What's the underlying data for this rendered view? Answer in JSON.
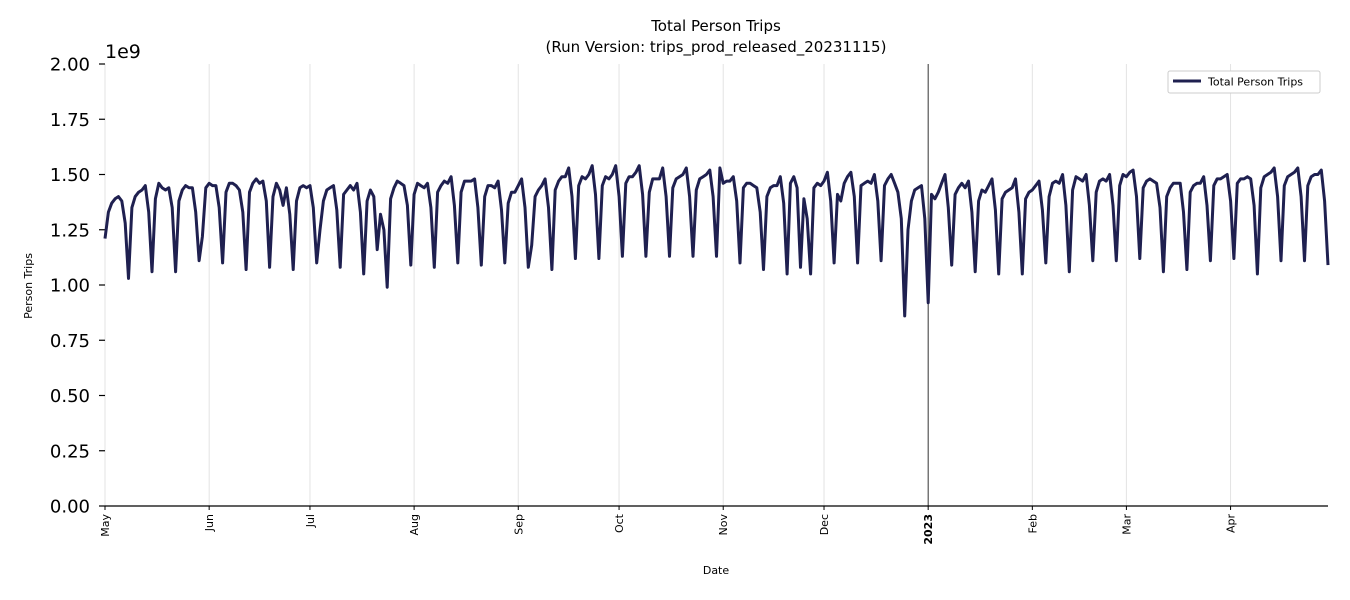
{
  "chart_data": {
    "type": "line",
    "title": "Total Person Trips",
    "subtitle": "(Run Version: trips_prod_released_20231115)",
    "xlabel": "Date",
    "ylabel": "Person Trips",
    "y_multiplier_label": "1e9",
    "ylim": [
      0,
      2.0
    ],
    "y_ticks": [
      "0.00",
      "0.25",
      "0.50",
      "0.75",
      "1.00",
      "1.25",
      "1.50",
      "1.75",
      "2.00"
    ],
    "xlim": [
      "2022-05-01",
      "2023-04-30"
    ],
    "x_ticks": [
      {
        "date": "2022-05-01",
        "label": "May",
        "bold": false
      },
      {
        "date": "2022-06-01",
        "label": "Jun",
        "bold": false
      },
      {
        "date": "2022-07-01",
        "label": "Jul",
        "bold": false
      },
      {
        "date": "2022-08-01",
        "label": "Aug",
        "bold": false
      },
      {
        "date": "2022-09-01",
        "label": "Sep",
        "bold": false
      },
      {
        "date": "2022-10-01",
        "label": "Oct",
        "bold": false
      },
      {
        "date": "2022-11-01",
        "label": "Nov",
        "bold": false
      },
      {
        "date": "2022-12-01",
        "label": "Dec",
        "bold": false
      },
      {
        "date": "2023-01-01",
        "label": "2023",
        "bold": true
      },
      {
        "date": "2023-02-01",
        "label": "Feb",
        "bold": false
      },
      {
        "date": "2023-03-01",
        "label": "Mar",
        "bold": false
      },
      {
        "date": "2023-04-01",
        "label": "Apr",
        "bold": false
      }
    ],
    "grid": "vertical",
    "vline_date": "2023-01-01",
    "legend_position": "top-right",
    "series": [
      {
        "name": "Total Person Trips",
        "color": "#1f2050",
        "x_start": "2022-05-01",
        "x_step": "1 day",
        "values": [
          1.21,
          1.33,
          1.37,
          1.39,
          1.4,
          1.38,
          1.28,
          1.03,
          1.35,
          1.4,
          1.42,
          1.43,
          1.45,
          1.33,
          1.06,
          1.39,
          1.46,
          1.44,
          1.43,
          1.44,
          1.35,
          1.06,
          1.38,
          1.43,
          1.45,
          1.44,
          1.44,
          1.33,
          1.11,
          1.22,
          1.44,
          1.46,
          1.45,
          1.45,
          1.35,
          1.1,
          1.42,
          1.46,
          1.46,
          1.45,
          1.43,
          1.33,
          1.07,
          1.42,
          1.46,
          1.48,
          1.46,
          1.47,
          1.38,
          1.08,
          1.4,
          1.46,
          1.43,
          1.36,
          1.44,
          1.32,
          1.07,
          1.38,
          1.44,
          1.45,
          1.44,
          1.45,
          1.35,
          1.1,
          1.25,
          1.38,
          1.43,
          1.44,
          1.45,
          1.34,
          1.08,
          1.41,
          1.43,
          1.45,
          1.43,
          1.46,
          1.33,
          1.05,
          1.38,
          1.43,
          1.4,
          1.16,
          1.32,
          1.25,
          0.99,
          1.39,
          1.44,
          1.47,
          1.46,
          1.45,
          1.36,
          1.09,
          1.41,
          1.46,
          1.45,
          1.44,
          1.46,
          1.35,
          1.08,
          1.42,
          1.45,
          1.47,
          1.46,
          1.49,
          1.36,
          1.1,
          1.42,
          1.47,
          1.47,
          1.47,
          1.48,
          1.35,
          1.09,
          1.4,
          1.45,
          1.45,
          1.44,
          1.47,
          1.34,
          1.1,
          1.37,
          1.42,
          1.42,
          1.45,
          1.48,
          1.35,
          1.08,
          1.18,
          1.4,
          1.43,
          1.45,
          1.48,
          1.35,
          1.07,
          1.43,
          1.47,
          1.49,
          1.49,
          1.53,
          1.4,
          1.12,
          1.45,
          1.49,
          1.48,
          1.5,
          1.54,
          1.41,
          1.12,
          1.45,
          1.49,
          1.48,
          1.5,
          1.54,
          1.4,
          1.13,
          1.46,
          1.49,
          1.49,
          1.51,
          1.54,
          1.41,
          1.13,
          1.42,
          1.48,
          1.48,
          1.48,
          1.53,
          1.4,
          1.13,
          1.44,
          1.48,
          1.49,
          1.5,
          1.53,
          1.4,
          1.13,
          1.43,
          1.48,
          1.49,
          1.5,
          1.52,
          1.4,
          1.13,
          1.53,
          1.46,
          1.47,
          1.47,
          1.49,
          1.38,
          1.1,
          1.44,
          1.46,
          1.46,
          1.45,
          1.44,
          1.33,
          1.07,
          1.4,
          1.44,
          1.45,
          1.45,
          1.49,
          1.37,
          1.05,
          1.46,
          1.49,
          1.44,
          1.08,
          1.39,
          1.3,
          1.05,
          1.44,
          1.46,
          1.45,
          1.47,
          1.51,
          1.38,
          1.1,
          1.41,
          1.38,
          1.46,
          1.49,
          1.51,
          1.4,
          1.1,
          1.45,
          1.46,
          1.47,
          1.46,
          1.5,
          1.38,
          1.11,
          1.45,
          1.48,
          1.5,
          1.46,
          1.42,
          1.3,
          0.86,
          1.25,
          1.38,
          1.43,
          1.44,
          1.45,
          1.3,
          0.92,
          1.41,
          1.39,
          1.42,
          1.46,
          1.5,
          1.35,
          1.09,
          1.41,
          1.44,
          1.46,
          1.44,
          1.47,
          1.33,
          1.06,
          1.38,
          1.43,
          1.42,
          1.45,
          1.48,
          1.34,
          1.05,
          1.39,
          1.42,
          1.43,
          1.44,
          1.48,
          1.33,
          1.05,
          1.39,
          1.42,
          1.43,
          1.45,
          1.47,
          1.34,
          1.1,
          1.4,
          1.46,
          1.47,
          1.46,
          1.5,
          1.36,
          1.06,
          1.43,
          1.49,
          1.48,
          1.47,
          1.5,
          1.36,
          1.11,
          1.42,
          1.47,
          1.48,
          1.47,
          1.5,
          1.36,
          1.11,
          1.45,
          1.5,
          1.49,
          1.51,
          1.52,
          1.4,
          1.12,
          1.44,
          1.47,
          1.48,
          1.47,
          1.46,
          1.35,
          1.06,
          1.4,
          1.44,
          1.46,
          1.46,
          1.46,
          1.33,
          1.07,
          1.42,
          1.45,
          1.46,
          1.46,
          1.49,
          1.36,
          1.11,
          1.45,
          1.48,
          1.48,
          1.49,
          1.5,
          1.38,
          1.12,
          1.46,
          1.48,
          1.48,
          1.49,
          1.48,
          1.36,
          1.05,
          1.44,
          1.49,
          1.5,
          1.51,
          1.53,
          1.4,
          1.11,
          1.45,
          1.49,
          1.5,
          1.51,
          1.53,
          1.4,
          1.11,
          1.45,
          1.49,
          1.5,
          1.5,
          1.52,
          1.38,
          1.09
        ]
      }
    ]
  }
}
